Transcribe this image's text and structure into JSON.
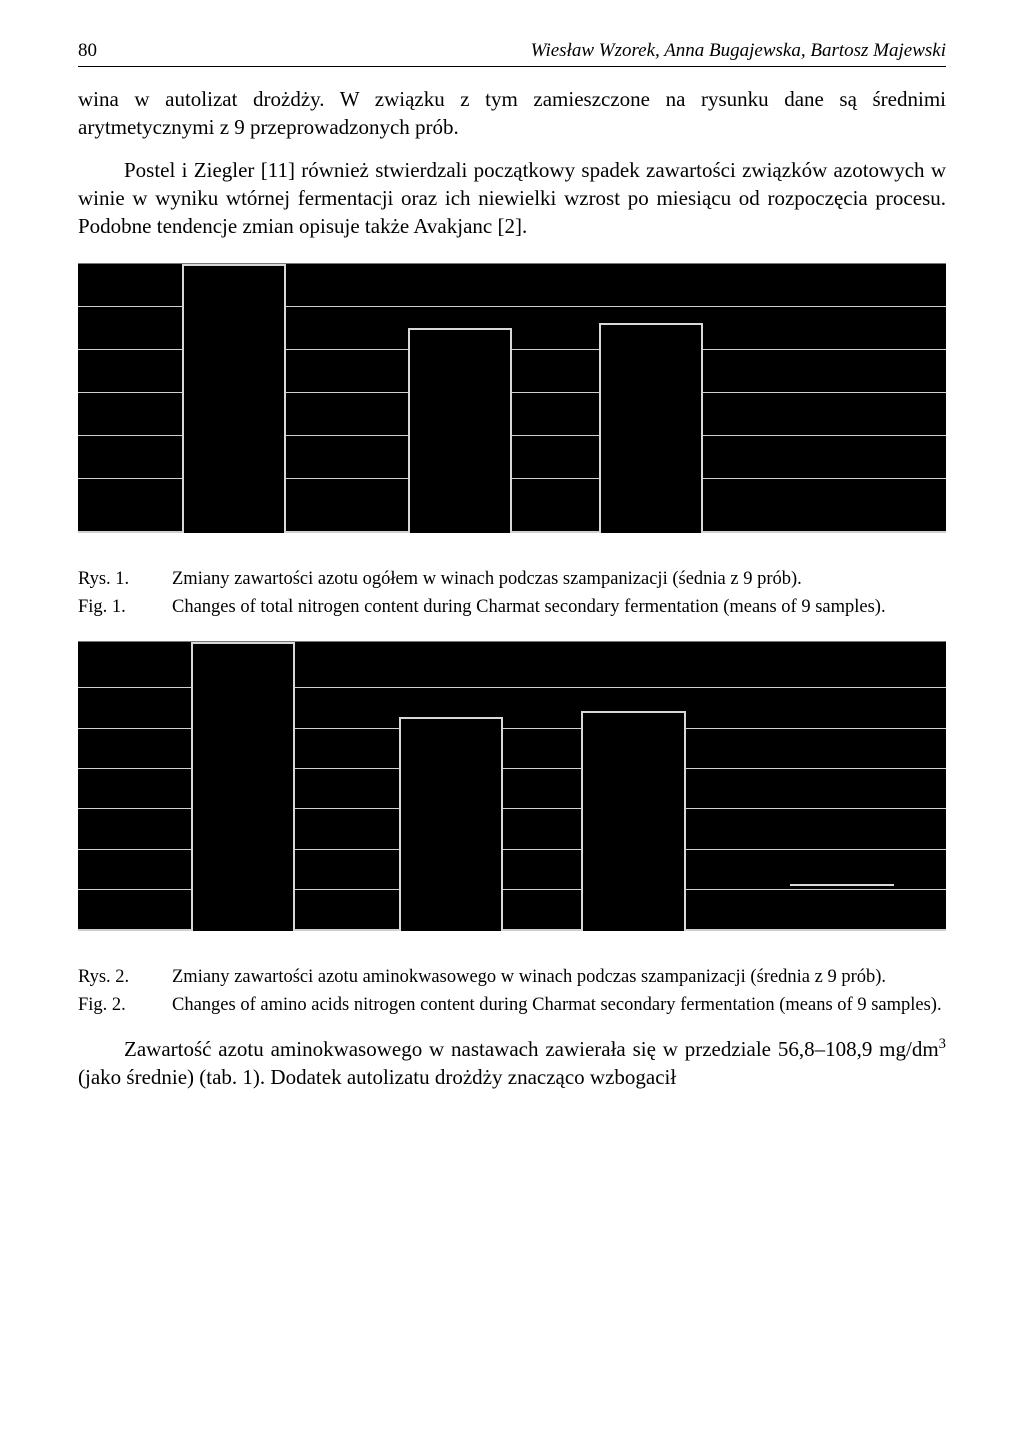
{
  "header": {
    "page_number": "80",
    "authors": "Wiesław Wzorek, Anna Bugajewska, Bartosz Majewski"
  },
  "body": {
    "para1": "wina w autolizat drożdży. W związku z tym zamieszczone na rysunku dane są średnimi arytmetycznymi z 9 przeprowadzonych prób.",
    "para2": "Postel i Ziegler [11] również stwierdzali początkowy spadek zawartości związków azotowych w winie w wyniku wtórnej fermentacji oraz ich niewielki wzrost po miesiącu od rozpoczęcia procesu. Podobne tendencje zmian opisuje także Avakjanc [2]."
  },
  "chart1": {
    "type": "bar",
    "background_color": "#000000",
    "grid_color": "#cfcfcf",
    "bar_border_color": "#d8d8d8",
    "gridlines_y_percent": [
      20,
      36,
      52,
      68,
      84,
      100
    ],
    "bars": [
      {
        "left_pct": 12,
        "width_pct": 12,
        "height_pct": 100
      },
      {
        "left_pct": 38,
        "width_pct": 12,
        "height_pct": 76
      },
      {
        "left_pct": 60,
        "width_pct": 12,
        "height_pct": 78
      }
    ],
    "caption_rys_tag": "Rys. 1.",
    "caption_rys": "Zmiany zawartości azotu ogółem w winach podczas szampanizacji (śednia z 9 prób).",
    "caption_fig_tag": "Fig. 1.",
    "caption_fig": "Changes of total nitrogen content during Charmat secondary fermentation (means of 9 samples)."
  },
  "chart2": {
    "type": "bar",
    "background_color": "#000000",
    "grid_color": "#cfcfcf",
    "bar_border_color": "#d8d8d8",
    "gridlines_y_percent": [
      14,
      28,
      42,
      56,
      70,
      84,
      100
    ],
    "bars": [
      {
        "left_pct": 13,
        "width_pct": 12,
        "height_pct": 100
      },
      {
        "left_pct": 37,
        "width_pct": 12,
        "height_pct": 74
      },
      {
        "left_pct": 58,
        "width_pct": 12,
        "height_pct": 76
      }
    ],
    "extra_segment": {
      "left_pct": 82,
      "width_pct": 12,
      "bottom_pct": 12
    },
    "caption_rys_tag": "Rys. 2.",
    "caption_rys": "Zmiany zawartości azotu aminokwasowego w winach podczas szampanizacji (średnia z 9 prób).",
    "caption_fig_tag": "Fig. 2.",
    "caption_fig": "Changes of amino acids nitrogen content during Charmat secondary fermentation (means of 9 samples)."
  },
  "footer": {
    "para_pre": "Zawartość azotu aminokwasowego w nastawach zawierała się w przedziale 56,8–108,9 mg/dm",
    "sup": "3",
    "para_post": " (jako średnie) (tab. 1). Dodatek autolizatu drożdży znacząco wzbogacił"
  }
}
